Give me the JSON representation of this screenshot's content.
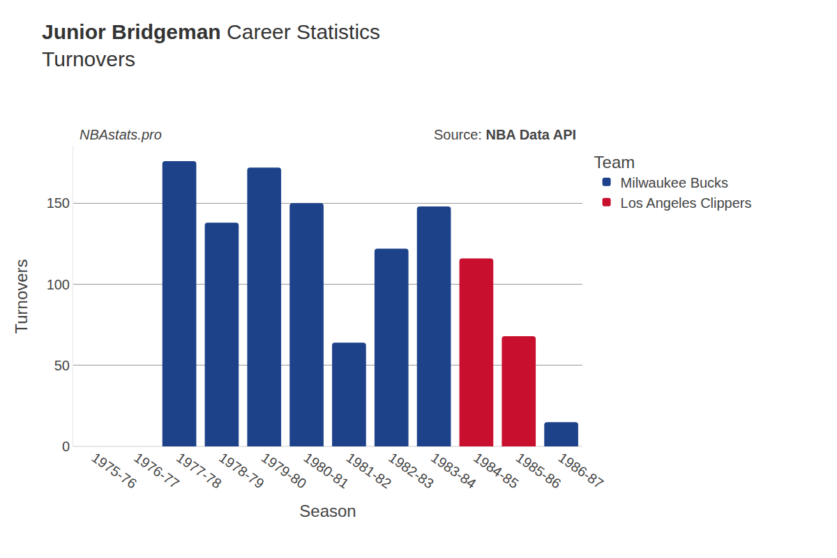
{
  "chart_data": {
    "type": "bar",
    "title": "Junior Bridgeman Career Statistics",
    "subtitle": "Turnovers",
    "annotations": [
      "NBAstats.pro",
      "Source: NBA Data API"
    ],
    "x_label": "Season",
    "y_label": "Turnovers",
    "legend_title": "Team",
    "legend": "right",
    "categories": [
      "1975-76",
      "1976-77",
      "1977-78",
      "1978-79",
      "1979-80",
      "1980-81",
      "1981-82",
      "1982-83",
      "1983-84",
      "1984-85",
      "1985-86",
      "1986-87"
    ],
    "series": [
      {
        "name": "Milwaukee Bucks",
        "color": "#1d428a",
        "values": [
          null,
          null,
          176,
          138,
          172,
          150,
          64,
          122,
          148,
          null,
          null,
          15
        ]
      },
      {
        "name": "Los Angeles Clippers",
        "color": "#c8102e",
        "values": [
          null,
          null,
          null,
          null,
          null,
          null,
          null,
          null,
          null,
          116,
          68,
          null
        ]
      }
    ],
    "ylim": [
      0,
      185
    ],
    "yticks": [
      0,
      50,
      100,
      150
    ],
    "grid": true
  }
}
